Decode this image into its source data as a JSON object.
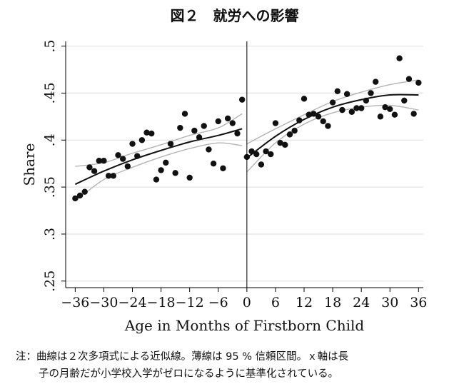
{
  "figure": {
    "title": "図２　就労への影響",
    "note_line1": "注：曲線は２次多項式による近似線。薄線は 95 % 信頼区間。ｘ軸は長",
    "note_line2": "子の月齢だが小学校入学がゼロになるように基準化されている。"
  },
  "chart_data": {
    "type": "scatter",
    "title": "",
    "xlabel": "Age in Months of Firstborn Child",
    "ylabel": "Share",
    "xlim": [
      -38,
      37
    ],
    "ylim": [
      0.243,
      0.505
    ],
    "xticks": [
      -36,
      -30,
      -24,
      -18,
      -12,
      -6,
      0,
      6,
      12,
      18,
      24,
      30,
      36
    ],
    "xtick_labels": [
      "−36",
      "−30",
      "−24",
      "−18",
      "−12",
      "−6",
      "0",
      "6",
      "12",
      "18",
      "24",
      "30",
      "36"
    ],
    "yticks": [
      0.25,
      0.3,
      0.35,
      0.4,
      0.45,
      0.5
    ],
    "ytick_labels": [
      ".25",
      ".3",
      ".35",
      ".4",
      ".45",
      ".5"
    ],
    "grid": "horizontal",
    "legend": "none",
    "vertical_line_at": 0,
    "colors": {
      "points": "#111111",
      "fit": "#111111",
      "ci": "#b3b3b3",
      "grid": "#dddddd"
    },
    "points": {
      "x": [
        -36,
        -35,
        -34,
        -33,
        -32,
        -31,
        -30,
        -29,
        -28,
        -27,
        -26,
        -25,
        -24,
        -23,
        -22,
        -21,
        -20,
        -19,
        -18,
        -17,
        -16,
        -15,
        -14,
        -13,
        -12,
        -11,
        -10,
        -9,
        -8,
        -7,
        -6,
        -5,
        -4,
        -3,
        -2,
        -1,
        0,
        1,
        2,
        3,
        4,
        5,
        6,
        7,
        8,
        9,
        10,
        11,
        12,
        13,
        14,
        15,
        16,
        17,
        18,
        19,
        20,
        21,
        22,
        23,
        24,
        25,
        26,
        27,
        28,
        29,
        30,
        31,
        32,
        33,
        34,
        35,
        36
      ],
      "y": [
        0.338,
        0.341,
        0.345,
        0.371,
        0.367,
        0.378,
        0.378,
        0.362,
        0.362,
        0.384,
        0.38,
        0.372,
        0.396,
        0.383,
        0.4,
        0.408,
        0.407,
        0.358,
        0.368,
        0.376,
        0.396,
        0.365,
        0.413,
        0.428,
        0.36,
        0.41,
        0.403,
        0.415,
        0.39,
        0.375,
        0.42,
        0.37,
        0.423,
        0.418,
        0.407,
        0.443,
        0.382,
        0.388,
        0.385,
        0.374,
        0.388,
        0.385,
        0.418,
        0.397,
        0.395,
        0.406,
        0.41,
        0.421,
        0.444,
        0.427,
        0.428,
        0.425,
        0.42,
        0.415,
        0.44,
        0.452,
        0.432,
        0.449,
        0.43,
        0.434,
        0.434,
        0.442,
        0.45,
        0.462,
        0.425,
        0.435,
        0.433,
        0.427,
        0.487,
        0.442,
        0.465,
        0.428,
        0.461
      ]
    },
    "fit_left": {
      "x": [
        -36,
        -30,
        -24,
        -18,
        -12,
        -6,
        -1
      ],
      "y": [
        0.353,
        0.367,
        0.379,
        0.389,
        0.398,
        0.405,
        0.412
      ]
    },
    "ci_left_upper": {
      "x": [
        -36,
        -30,
        -24,
        -18,
        -12,
        -6,
        -1
      ],
      "y": [
        0.372,
        0.376,
        0.386,
        0.395,
        0.405,
        0.413,
        0.428
      ]
    },
    "ci_left_lower": {
      "x": [
        -36,
        -30,
        -24,
        -18,
        -12,
        -6,
        -1
      ],
      "y": [
        0.335,
        0.358,
        0.371,
        0.382,
        0.391,
        0.397,
        0.394
      ]
    },
    "fit_right": {
      "x": [
        0,
        6,
        12,
        18,
        24,
        30,
        36
      ],
      "y": [
        0.381,
        0.404,
        0.422,
        0.435,
        0.443,
        0.448,
        0.448
      ]
    },
    "ci_right_upper": {
      "x": [
        0,
        6,
        12,
        18,
        24,
        30,
        36
      ],
      "y": [
        0.396,
        0.412,
        0.427,
        0.441,
        0.451,
        0.459,
        0.464
      ]
    },
    "ci_right_lower": {
      "x": [
        0,
        6,
        12,
        18,
        24,
        30,
        36
      ],
      "y": [
        0.366,
        0.397,
        0.417,
        0.429,
        0.435,
        0.437,
        0.432
      ]
    }
  }
}
